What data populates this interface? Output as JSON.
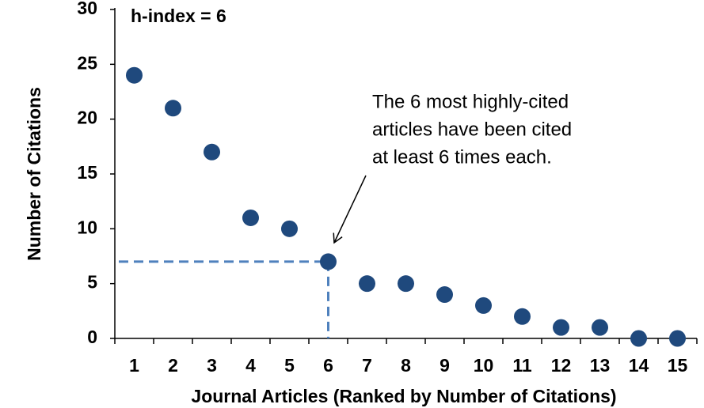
{
  "chart_data": {
    "type": "scatter",
    "x_label": "Journal Articles (Ranked by Number of Citations)",
    "y_label": "Number of Citations",
    "h_index_label": "h-index = 6",
    "annotation": [
      "The 6 most highly-cited",
      "articles have been cited",
      "at least 6 times each."
    ],
    "categories": [
      "1",
      "2",
      "3",
      "4",
      "5",
      "6",
      "7",
      "8",
      "9",
      "10",
      "11",
      "12",
      "13",
      "14",
      "15"
    ],
    "values": [
      24,
      21,
      17,
      11,
      10,
      7,
      5,
      5,
      4,
      3,
      2,
      1,
      1,
      0,
      0
    ],
    "highlight_index": 5,
    "color": "#1f497d",
    "guide_color": "#4f81bd",
    "ylim": [
      0,
      30
    ],
    "yticks": [
      0,
      5,
      10,
      15,
      20,
      25,
      30
    ],
    "grid": false
  }
}
